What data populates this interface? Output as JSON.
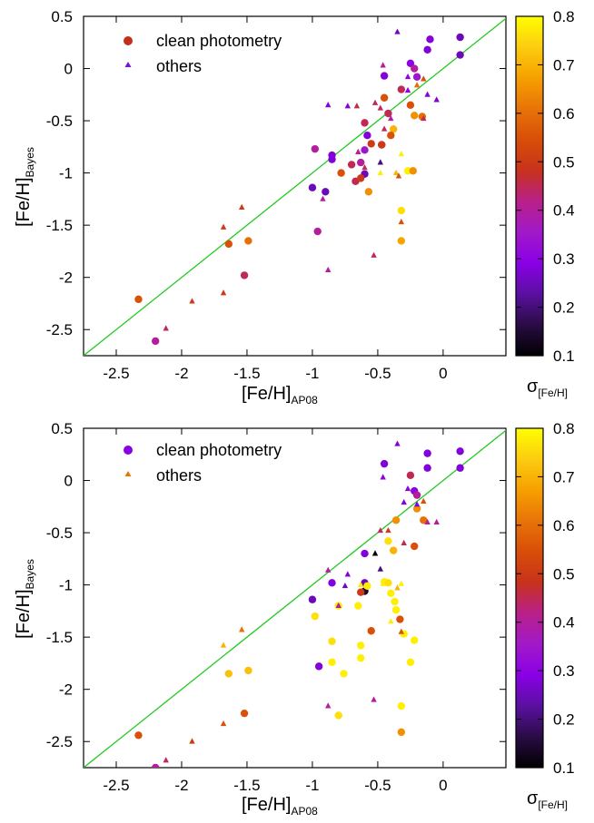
{
  "chart_data": [
    {
      "type": "scatter",
      "xlabel": "[Fe/H]",
      "xlabel_sub": "AP08",
      "ylabel": "[Fe/H]",
      "ylabel_sub": "Bayes",
      "xlim": [
        -2.75,
        0.48
      ],
      "ylim": [
        -2.75,
        0.5
      ],
      "xticks": [
        "-2.5",
        "-2",
        "-1.5",
        "-1",
        "-0.5",
        "0"
      ],
      "yticks": [
        "0.5",
        "0",
        "-0.5",
        "-1",
        "-1.5",
        "-2",
        "-2.5"
      ],
      "legend": [
        {
          "label": "clean photometry",
          "marker": "circle",
          "color": "#c0301a"
        },
        {
          "label": "others",
          "marker": "triangle",
          "color": "#7a10d8"
        }
      ],
      "legend_position": "top-left",
      "reference_line": "y = x",
      "reference_line_color": "#22c922",
      "colorbar": {
        "label": "σ",
        "label_sub": "[Fe/H]",
        "range": [
          0.1,
          0.8
        ],
        "ticks": [
          "0.8",
          "0.7",
          "0.6",
          "0.5",
          "0.4",
          "0.3",
          "0.2",
          "0.1"
        ],
        "palette": [
          "#000000",
          "#2a0c44",
          "#5a10a0",
          "#8a00e6",
          "#a219c8",
          "#b8208a",
          "#c8321c",
          "#d84e08",
          "#e87408",
          "#f6a000",
          "#fccc10",
          "#ffff00"
        ]
      },
      "series": [
        {
          "name": "clean photometry",
          "marker": "circle",
          "points": [
            [
              0.13,
              0.3,
              0.25
            ],
            [
              0.13,
              0.13,
              0.25
            ],
            [
              -0.1,
              0.28,
              0.28
            ],
            [
              -0.12,
              0.18,
              0.28
            ],
            [
              -0.25,
              0.05,
              0.3
            ],
            [
              -0.22,
              0.0,
              0.4
            ],
            [
              -0.2,
              -0.08,
              0.35
            ],
            [
              -0.32,
              -0.2,
              0.45
            ],
            [
              -0.45,
              -0.07,
              0.28
            ],
            [
              -0.45,
              -0.28,
              0.55
            ],
            [
              -0.25,
              -0.35,
              0.55
            ],
            [
              -0.16,
              -0.46,
              0.6
            ],
            [
              -0.22,
              -0.45,
              0.65
            ],
            [
              -0.42,
              -0.43,
              0.45
            ],
            [
              -0.38,
              -0.58,
              0.7
            ],
            [
              -0.4,
              -0.64,
              0.55
            ],
            [
              -0.6,
              -0.52,
              0.45
            ],
            [
              -0.58,
              -0.64,
              0.28
            ],
            [
              -0.55,
              -0.72,
              0.5
            ],
            [
              -0.47,
              -0.73,
              0.3
            ],
            [
              -0.47,
              -0.73,
              0.5
            ],
            [
              -0.6,
              -0.78,
              0.35
            ],
            [
              -0.63,
              -0.9,
              0.4
            ],
            [
              -0.7,
              -0.92,
              0.45
            ],
            [
              -0.78,
              -1.0,
              0.55
            ],
            [
              -0.85,
              -0.83,
              0.28
            ],
            [
              -0.85,
              -0.87,
              0.28
            ],
            [
              -0.98,
              -0.77,
              0.4
            ],
            [
              -0.6,
              -1.01,
              0.25
            ],
            [
              -0.67,
              -1.08,
              0.45
            ],
            [
              -0.63,
              -1.05,
              0.5
            ],
            [
              -0.27,
              -0.98,
              0.78
            ],
            [
              -0.23,
              -0.98,
              0.65
            ],
            [
              -0.57,
              -1.18,
              0.65
            ],
            [
              -0.9,
              -1.18,
              0.25
            ],
            [
              -1.0,
              -1.14,
              0.25
            ],
            [
              -0.96,
              -1.56,
              0.4
            ],
            [
              -0.32,
              -1.36,
              0.76
            ],
            [
              -0.32,
              -1.65,
              0.68
            ],
            [
              -1.64,
              -1.68,
              0.55
            ],
            [
              -1.49,
              -1.65,
              0.6
            ],
            [
              -1.52,
              -1.98,
              0.45
            ],
            [
              -2.33,
              -2.21,
              0.55
            ],
            [
              -2.2,
              -2.61,
              0.4
            ]
          ]
        },
        {
          "name": "others",
          "marker": "triangle",
          "points": [
            [
              -0.35,
              0.35,
              0.25
            ],
            [
              -0.46,
              0.03,
              0.4
            ],
            [
              -0.27,
              -0.08,
              0.3
            ],
            [
              -0.15,
              -0.1,
              0.55
            ],
            [
              -0.2,
              -0.16,
              0.6
            ],
            [
              -0.27,
              -0.21,
              0.3
            ],
            [
              -0.12,
              -0.25,
              0.28
            ],
            [
              -0.05,
              -0.3,
              0.28
            ],
            [
              -0.52,
              -0.33,
              0.45
            ],
            [
              -0.48,
              -0.38,
              0.45
            ],
            [
              -0.66,
              -0.36,
              0.45
            ],
            [
              -0.73,
              -0.36,
              0.28
            ],
            [
              -0.88,
              -0.35,
              0.28
            ],
            [
              -0.4,
              -0.48,
              0.4
            ],
            [
              -0.15,
              -0.48,
              0.45
            ],
            [
              -0.65,
              -0.8,
              0.4
            ],
            [
              -0.45,
              -0.58,
              0.45
            ],
            [
              -0.32,
              -0.82,
              0.78
            ],
            [
              -0.48,
              -0.9,
              0.2
            ],
            [
              -0.6,
              -0.95,
              0.45
            ],
            [
              -0.48,
              -1.0,
              0.78
            ],
            [
              -0.36,
              -1.0,
              0.7
            ],
            [
              -0.34,
              -1.03,
              0.55
            ],
            [
              -0.92,
              -1.25,
              0.4
            ],
            [
              -0.32,
              -1.47,
              0.55
            ],
            [
              -0.88,
              -1.93,
              0.4
            ],
            [
              -0.53,
              -1.79,
              0.45
            ],
            [
              -1.54,
              -1.33,
              0.5
            ],
            [
              -1.68,
              -1.52,
              0.5
            ],
            [
              -1.68,
              -2.15,
              0.5
            ],
            [
              -1.92,
              -2.23,
              0.5
            ],
            [
              -2.12,
              -2.49,
              0.45
            ]
          ]
        }
      ]
    },
    {
      "type": "scatter",
      "xlabel": "[Fe/H]",
      "xlabel_sub": "AP08",
      "ylabel": "[Fe/H]",
      "ylabel_sub": "Bayes",
      "xlim": [
        -2.75,
        0.48
      ],
      "ylim": [
        -2.75,
        0.5
      ],
      "xticks": [
        "-2.5",
        "-2",
        "-1.5",
        "-1",
        "-0.5",
        "0"
      ],
      "yticks": [
        "0.5",
        "0",
        "-0.5",
        "-1",
        "-1.5",
        "-2",
        "-2.5"
      ],
      "legend": [
        {
          "label": "clean photometry",
          "marker": "circle",
          "color": "#8a00e6"
        },
        {
          "label": "others",
          "marker": "triangle",
          "color": "#e87408"
        }
      ],
      "legend_position": "top-left",
      "reference_line": "y = x",
      "reference_line_color": "#22c922",
      "colorbar": {
        "label": "σ",
        "label_sub": "[Fe/H]",
        "range": [
          0.1,
          0.8
        ],
        "ticks": [
          "0.8",
          "0.7",
          "0.6",
          "0.5",
          "0.4",
          "0.3",
          "0.2",
          "0.1"
        ],
        "palette": [
          "#000000",
          "#2a0c44",
          "#5a10a0",
          "#8a00e6",
          "#a219c8",
          "#b8208a",
          "#c8321c",
          "#d84e08",
          "#e87408",
          "#f6a000",
          "#fccc10",
          "#ffff00"
        ]
      },
      "series": [
        {
          "name": "clean photometry",
          "marker": "circle",
          "points": [
            [
              0.13,
              0.28,
              0.28
            ],
            [
              0.13,
              0.12,
              0.28
            ],
            [
              -0.12,
              0.26,
              0.28
            ],
            [
              -0.12,
              0.12,
              0.28
            ],
            [
              -0.25,
              0.05,
              0.45
            ],
            [
              -0.22,
              -0.1,
              0.3
            ],
            [
              -0.2,
              -0.14,
              0.4
            ],
            [
              -0.2,
              -0.27,
              0.65
            ],
            [
              -0.45,
              0.16,
              0.28
            ],
            [
              -0.36,
              -0.38,
              0.65
            ],
            [
              -0.15,
              -0.38,
              0.6
            ],
            [
              -0.22,
              -0.63,
              0.55
            ],
            [
              -0.38,
              -0.67,
              0.7
            ],
            [
              -0.42,
              -0.58,
              0.76
            ],
            [
              -0.6,
              -0.7,
              0.28
            ],
            [
              -0.6,
              -0.98,
              0.25
            ],
            [
              -0.6,
              -1.06,
              0.15
            ],
            [
              -0.58,
              -1.01,
              0.78
            ],
            [
              -0.63,
              -1.07,
              0.5
            ],
            [
              -0.85,
              -0.98,
              0.28
            ],
            [
              -1.0,
              -1.14,
              0.25
            ],
            [
              -0.45,
              -0.97,
              0.78
            ],
            [
              -0.42,
              -0.98,
              0.76
            ],
            [
              -0.4,
              -1.08,
              0.78
            ],
            [
              -0.37,
              -1.16,
              0.78
            ],
            [
              -0.36,
              -1.24,
              0.78
            ],
            [
              -0.33,
              -1.33,
              0.55
            ],
            [
              -0.55,
              -1.44,
              0.55
            ],
            [
              -0.3,
              -1.47,
              0.78
            ],
            [
              -0.22,
              -1.53,
              0.78
            ],
            [
              -0.25,
              -1.74,
              0.78
            ],
            [
              -0.65,
              -1.2,
              0.78
            ],
            [
              -0.8,
              -1.2,
              0.78
            ],
            [
              -0.98,
              -1.3,
              0.76
            ],
            [
              -0.85,
              -1.54,
              0.76
            ],
            [
              -0.63,
              -1.58,
              0.78
            ],
            [
              -0.63,
              -1.7,
              0.78
            ],
            [
              -0.85,
              -1.74,
              0.78
            ],
            [
              -0.76,
              -1.85,
              0.78
            ],
            [
              -0.95,
              -1.78,
              0.28
            ],
            [
              -0.8,
              -2.25,
              0.76
            ],
            [
              -0.32,
              -2.16,
              0.78
            ],
            [
              -0.32,
              -2.41,
              0.65
            ],
            [
              -1.64,
              -1.85,
              0.72
            ],
            [
              -1.49,
              -1.82,
              0.72
            ],
            [
              -1.52,
              -2.23,
              0.55
            ],
            [
              -2.33,
              -2.44,
              0.55
            ],
            [
              -2.2,
              -2.75,
              0.4
            ]
          ]
        },
        {
          "name": "others",
          "marker": "triangle",
          "points": [
            [
              -0.35,
              0.35,
              0.28
            ],
            [
              -0.46,
              0.03,
              0.3
            ],
            [
              -0.27,
              -0.08,
              0.3
            ],
            [
              -0.15,
              -0.2,
              0.55
            ],
            [
              -0.2,
              -0.23,
              0.28
            ],
            [
              -0.3,
              -0.21,
              0.28
            ],
            [
              -0.12,
              -0.4,
              0.4
            ],
            [
              -0.05,
              -0.4,
              0.4
            ],
            [
              -0.48,
              -0.48,
              0.45
            ],
            [
              -0.42,
              -0.48,
              0.5
            ],
            [
              -0.52,
              -0.7,
              0.1
            ],
            [
              -0.3,
              -0.6,
              0.45
            ],
            [
              -0.48,
              -0.85,
              0.2
            ],
            [
              -0.73,
              -0.9,
              0.28
            ],
            [
              -0.88,
              -0.86,
              0.4
            ],
            [
              -0.75,
              -1.01,
              0.25
            ],
            [
              -0.63,
              -1.0,
              0.78
            ],
            [
              -0.46,
              -0.99,
              0.78
            ],
            [
              -0.32,
              -0.99,
              0.78
            ],
            [
              -0.35,
              -1.03,
              0.7
            ],
            [
              -0.8,
              -1.2,
              0.4
            ],
            [
              -0.4,
              -1.35,
              0.78
            ],
            [
              -0.88,
              -2.16,
              0.4
            ],
            [
              -0.53,
              -2.1,
              0.4
            ],
            [
              -0.32,
              -1.45,
              0.55
            ],
            [
              -1.54,
              -1.43,
              0.6
            ],
            [
              -1.68,
              -1.58,
              0.7
            ],
            [
              -1.68,
              -2.33,
              0.55
            ],
            [
              -1.92,
              -2.5,
              0.5
            ],
            [
              -2.12,
              -2.68,
              0.45
            ]
          ]
        }
      ]
    }
  ]
}
